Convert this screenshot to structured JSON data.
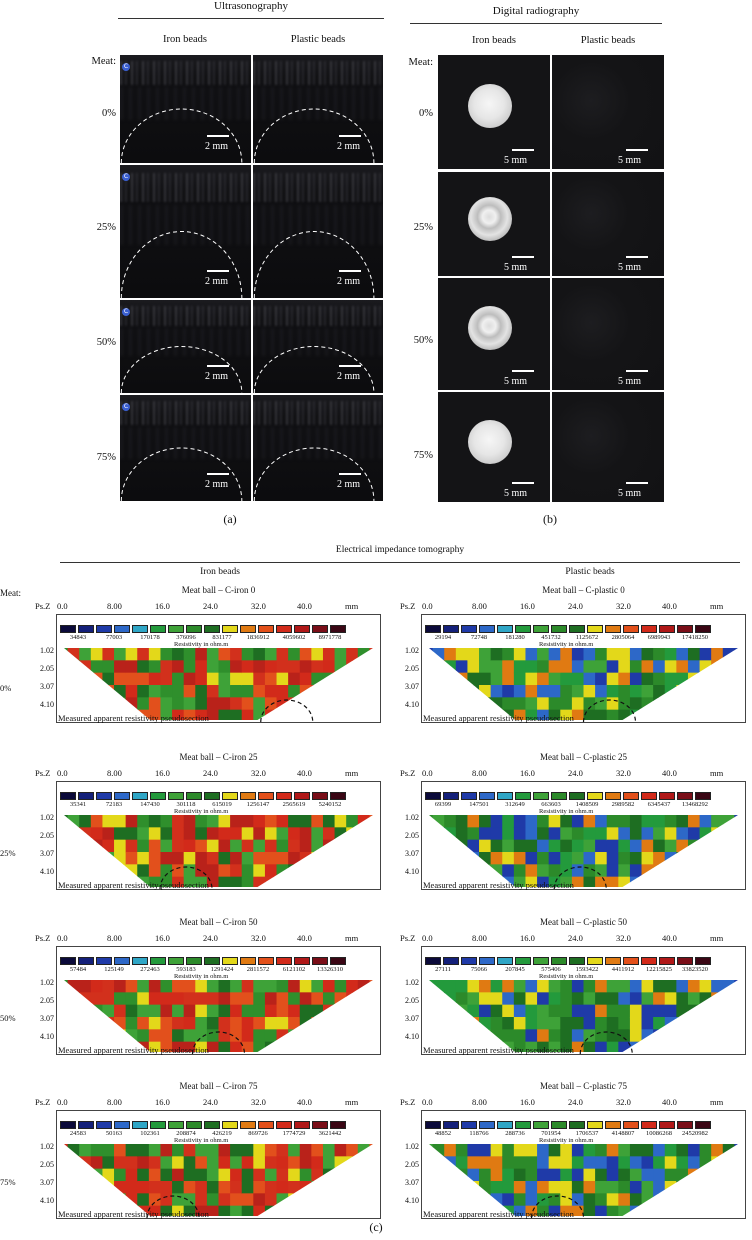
{
  "ultrasonography": {
    "title": "Ultrasonography",
    "meat_label": "Meat:",
    "columns": [
      "Iron beads",
      "Plastic beads"
    ],
    "rows": [
      "0%",
      "25%",
      "50%",
      "75%"
    ],
    "scale": "2 mm",
    "logo_glyph": "C"
  },
  "radiography": {
    "title": "Digital radiography",
    "meat_label": "Meat:",
    "columns": [
      "Iron beads",
      "Plastic beads"
    ],
    "rows": [
      "0%",
      "25%",
      "50%",
      "75%"
    ],
    "scale": "5 mm"
  },
  "fig_labels": {
    "a": "(a)",
    "b": "(b)",
    "c": "(c)"
  },
  "eit": {
    "title": "Electrical impedance tomography",
    "meat_label": "Meat:",
    "columns": [
      "Iron beads",
      "Plastic beads"
    ],
    "row_labels": [
      "0%",
      "25%",
      "50%",
      "75%"
    ],
    "axis_label": "Ps.Z",
    "ticks": [
      "0.0",
      "8.00",
      "16.0",
      "24.0",
      "32.0",
      "40.0",
      "mm"
    ],
    "depths": [
      "1.02",
      "2.05",
      "3.07",
      "4.10"
    ],
    "resistivity_label": "Resistivity in ohm.m",
    "footer": "Measured apparent resistivity pseudosection",
    "colorbar": [
      "#0b0a3a",
      "#14207a",
      "#1f3aa8",
      "#2d68c8",
      "#2fa6c6",
      "#239a3c",
      "#3ea238",
      "#2c8a2a",
      "#1e6e22",
      "#e3d81a",
      "#e07a12",
      "#e3501a",
      "#d22a1a",
      "#b01818",
      "#7a0e18",
      "#3a0614"
    ],
    "panels": [
      {
        "title": "Meat ball – C-iron 0",
        "values": [
          "34843",
          "77003",
          "170178",
          "376096",
          "831177",
          "1836912",
          "4059602",
          "8971778"
        ]
      },
      {
        "title": "Meat ball – C-plastic 0",
        "values": [
          "29194",
          "72748",
          "181280",
          "451732",
          "1125672",
          "2805064",
          "6989943",
          "17418250"
        ]
      },
      {
        "title": "Meat ball – C-iron 25",
        "values": [
          "35341",
          "72183",
          "147430",
          "301118",
          "615019",
          "1256147",
          "2565619",
          "5240152"
        ]
      },
      {
        "title": "Meat ball – C-plastic 25",
        "values": [
          "69399",
          "147501",
          "312649",
          "663603",
          "1408509",
          "2989582",
          "6345437",
          "13468292"
        ]
      },
      {
        "title": "Meat ball – C-iron 50",
        "values": [
          "57484",
          "125149",
          "272463",
          "593183",
          "1291424",
          "2811572",
          "6121102",
          "13326310"
        ]
      },
      {
        "title": "Meat ball – C-plastic 50",
        "values": [
          "27111",
          "75066",
          "207845",
          "575406",
          "1593422",
          "4411912",
          "12215825",
          "33823520"
        ]
      },
      {
        "title": "Meat ball – C-iron 75",
        "values": [
          "24583",
          "50163",
          "102361",
          "208874",
          "426219",
          "869726",
          "1774729",
          "3621442"
        ]
      },
      {
        "title": "Meat ball – C-plastic 75",
        "values": [
          "48852",
          "118766",
          "288736",
          "701954",
          "1706537",
          "4148807",
          "10086268",
          "24520982"
        ]
      }
    ]
  }
}
